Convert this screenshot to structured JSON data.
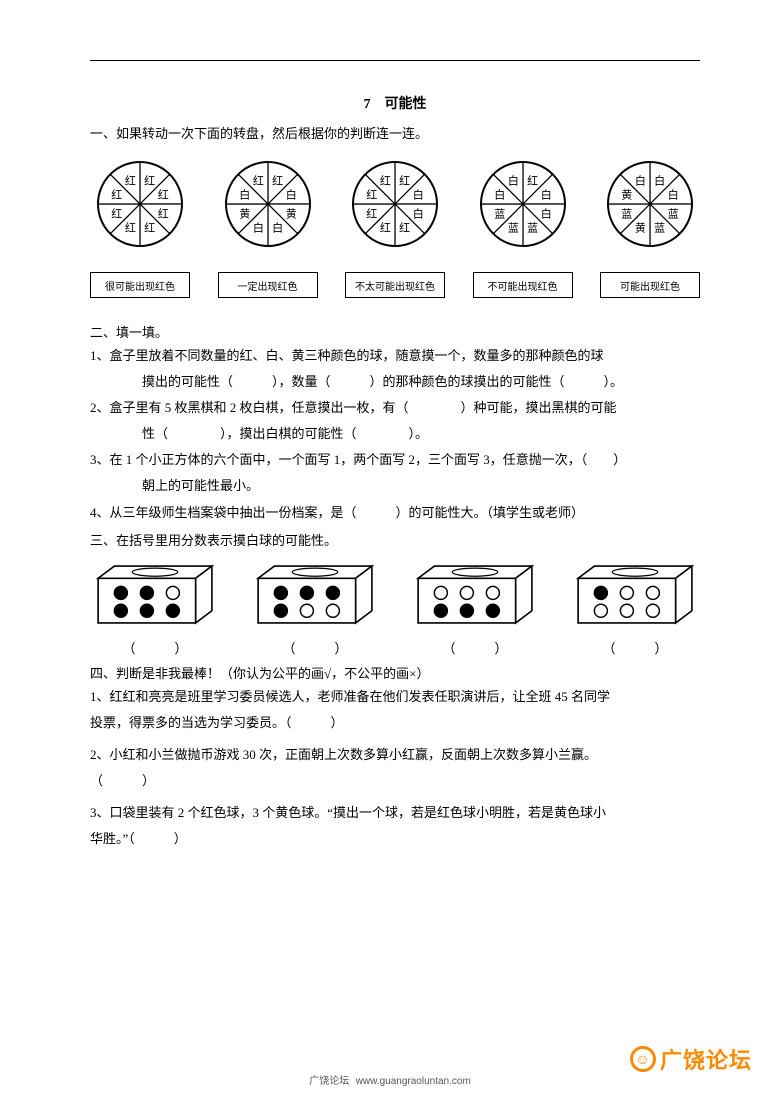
{
  "title": "7　可能性",
  "q1": {
    "stem": "一、如果转动一次下面的转盘，然后根据你的判断连一连。",
    "spinners": [
      {
        "sectors": [
          "红",
          "红",
          "红",
          "红",
          "红",
          "红",
          "红",
          "红"
        ]
      },
      {
        "sectors": [
          "红",
          "白",
          "黄",
          "白",
          "白",
          "黄",
          "白",
          "红"
        ]
      },
      {
        "sectors": [
          "红",
          "白",
          "白",
          "红",
          "红",
          "红",
          "红",
          "红"
        ]
      },
      {
        "sectors": [
          "红",
          "白",
          "白",
          "蓝",
          "蓝",
          "蓝",
          "白",
          "白"
        ]
      },
      {
        "sectors": [
          "白",
          "白",
          "蓝",
          "蓝",
          "黄",
          "蓝",
          "黄",
          "白"
        ]
      }
    ],
    "labels": [
      "很可能出现红色",
      "一定出现红色",
      "不太可能出现红色",
      "不可能出现红色",
      "可能出现红色"
    ]
  },
  "q2": {
    "head": "二、填一填。",
    "items": [
      "1、盒子里放着不同数量的红、白、黄三种颜色的球，随意摸一个，数量多的那种颜色的球",
      "摸出的可能性（　　　），数量（　　　）的那种颜色的球摸出的可能性（　　　）。",
      "2、盒子里有 5 枚黑棋和 2 枚白棋，任意摸出一枚，有（　　　　）种可能，摸出黑棋的可能",
      "性（　　　　），摸出白棋的可能性（　　　　）。",
      "3、在 1 个小正方体的六个面中，一个面写 1，两个面写 2，三个面写 3，任意抛一次，（　　）",
      "朝上的可能性最小。",
      "4、从三年级师生档案袋中抽出一份档案，是（　　　）的可能性大。（填学生或老师）"
    ]
  },
  "q3": {
    "head": "三、在括号里用分数表示摸白球的可能性。",
    "boxes": [
      {
        "dots": [
          [
            1,
            1,
            0
          ],
          [
            1,
            1,
            1
          ]
        ]
      },
      {
        "dots": [
          [
            1,
            1,
            1
          ],
          [
            1,
            0,
            0
          ]
        ]
      },
      {
        "dots": [
          [
            0,
            0,
            0
          ],
          [
            1,
            1,
            1
          ]
        ]
      },
      {
        "dots": [
          [
            1,
            0,
            0
          ],
          [
            0,
            0,
            0
          ]
        ]
      }
    ],
    "bracket": "（　　　）"
  },
  "q4": {
    "head": "四、判断是非我最棒！（你认为公平的画√，不公平的画×）",
    "items": [
      "1、红红和亮亮是班里学习委员候选人，老师准备在他们发表任职演讲后，让全班 45 名同学",
      "投票，得票多的当选为学习委员。（　　　）",
      "2、小红和小兰做抛币游戏 30 次，正面朝上次数多算小红赢，反面朝上次数多算小兰赢。",
      "（　　　）",
      "3、口袋里装有 2 个红色球，3 个黄色球。“摸出一个球，若是红色球小明胜，若是黄色球小",
      "华胜。”（　　　）"
    ]
  },
  "footer": {
    "site": "广饶论坛",
    "url": "www.guangraoluntan.com"
  },
  "logo": "广饶论坛",
  "colors": {
    "text": "#000000",
    "accent": "#ff8a00"
  }
}
